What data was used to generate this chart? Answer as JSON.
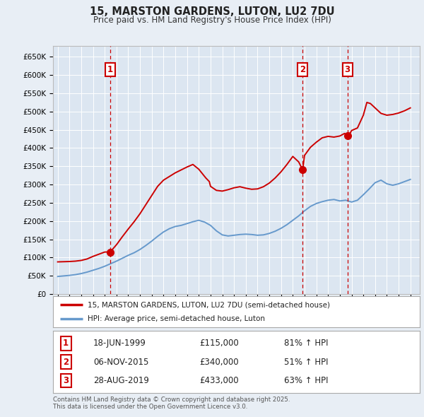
{
  "title": "15, MARSTON GARDENS, LUTON, LU2 7DU",
  "subtitle": "Price paid vs. HM Land Registry's House Price Index (HPI)",
  "background_color": "#e8eef5",
  "plot_bg_color": "#dce6f1",
  "ylim": [
    0,
    680000
  ],
  "yticks": [
    0,
    50000,
    100000,
    150000,
    200000,
    250000,
    300000,
    350000,
    400000,
    450000,
    500000,
    550000,
    600000,
    650000
  ],
  "ytick_labels": [
    "£0",
    "£50K",
    "£100K",
    "£150K",
    "£200K",
    "£250K",
    "£300K",
    "£350K",
    "£400K",
    "£450K",
    "£500K",
    "£550K",
    "£600K",
    "£650K"
  ],
  "xlim_start": 1994.6,
  "xlim_end": 2025.8,
  "xticks": [
    1995,
    1996,
    1997,
    1998,
    1999,
    2000,
    2001,
    2002,
    2003,
    2004,
    2005,
    2006,
    2007,
    2008,
    2009,
    2010,
    2011,
    2012,
    2013,
    2014,
    2015,
    2016,
    2017,
    2018,
    2019,
    2020,
    2021,
    2022,
    2023,
    2024,
    2025
  ],
  "grid_color": "#ffffff",
  "sale_line_color": "#cc0000",
  "hpi_line_color": "#6699cc",
  "vline_color": "#cc0000",
  "transactions": [
    {
      "date_year": 1999.46,
      "price": 115000,
      "label": "1"
    },
    {
      "date_year": 2015.84,
      "price": 340000,
      "label": "2"
    },
    {
      "date_year": 2019.65,
      "price": 433000,
      "label": "3"
    }
  ],
  "transaction_table": [
    {
      "num": "1",
      "date": "18-JUN-1999",
      "price": "£115,000",
      "hpi": "81% ↑ HPI"
    },
    {
      "num": "2",
      "date": "06-NOV-2015",
      "price": "£340,000",
      "hpi": "51% ↑ HPI"
    },
    {
      "num": "3",
      "date": "28-AUG-2019",
      "price": "£433,000",
      "hpi": "63% ↑ HPI"
    }
  ],
  "legend_entries": [
    "15, MARSTON GARDENS, LUTON, LU2 7DU (semi-detached house)",
    "HPI: Average price, semi-detached house, Luton"
  ],
  "footer": "Contains HM Land Registry data © Crown copyright and database right 2025.\nThis data is licensed under the Open Government Licence v3.0.",
  "hpi_x": [
    1995,
    1995.5,
    1996,
    1996.5,
    1997,
    1997.5,
    1998,
    1998.5,
    1999,
    1999.5,
    2000,
    2000.5,
    2001,
    2001.5,
    2002,
    2002.5,
    2003,
    2003.5,
    2004,
    2004.5,
    2005,
    2005.5,
    2006,
    2006.5,
    2007,
    2007.5,
    2008,
    2008.5,
    2009,
    2009.5,
    2010,
    2010.5,
    2011,
    2011.5,
    2012,
    2012.5,
    2013,
    2013.5,
    2014,
    2014.5,
    2015,
    2015.5,
    2016,
    2016.5,
    2017,
    2017.5,
    2018,
    2018.5,
    2019,
    2019.5,
    2020,
    2020.5,
    2021,
    2021.5,
    2022,
    2022.5,
    2023,
    2023.5,
    2024,
    2024.5,
    2025
  ],
  "hpi_y": [
    48000,
    49500,
    51000,
    53000,
    56000,
    60000,
    65000,
    70000,
    76000,
    83000,
    90000,
    98000,
    106000,
    113000,
    122000,
    133000,
    145000,
    158000,
    170000,
    179000,
    185000,
    188000,
    193000,
    198000,
    202000,
    197000,
    188000,
    173000,
    162000,
    159000,
    161000,
    163000,
    164000,
    163000,
    161000,
    162000,
    166000,
    172000,
    180000,
    190000,
    202000,
    214000,
    228000,
    240000,
    248000,
    253000,
    257000,
    259000,
    255000,
    257000,
    252000,
    257000,
    272000,
    288000,
    305000,
    312000,
    302000,
    298000,
    302000,
    308000,
    314000
  ],
  "sale_x": [
    1995,
    1995.5,
    1996,
    1996.5,
    1997,
    1997.5,
    1998,
    1998.5,
    1999,
    1999.46,
    2000,
    2000.5,
    2001,
    2001.5,
    2002,
    2002.5,
    2003,
    2003.5,
    2004,
    2004.5,
    2005,
    2005.5,
    2006,
    2006.5,
    2007,
    2007.3,
    2007.6,
    2007.9,
    2008,
    2008.5,
    2009,
    2009.5,
    2010,
    2010.5,
    2011,
    2011.5,
    2012,
    2012.5,
    2013,
    2013.5,
    2014,
    2014.5,
    2015,
    2015.5,
    2015.84,
    2016,
    2016.5,
    2017,
    2017.5,
    2018,
    2018.5,
    2019,
    2019.4,
    2019.65,
    2019.9,
    2020,
    2020.5,
    2021,
    2021.3,
    2021.6,
    2022,
    2022.5,
    2023,
    2023.5,
    2024,
    2024.5,
    2025
  ],
  "sale_y": [
    88000,
    88500,
    89000,
    90000,
    92000,
    96000,
    103000,
    109000,
    115000,
    115000,
    135000,
    157000,
    178000,
    198000,
    220000,
    245000,
    270000,
    295000,
    312000,
    322000,
    332000,
    340000,
    348000,
    355000,
    342000,
    330000,
    318000,
    308000,
    295000,
    284000,
    282000,
    286000,
    291000,
    294000,
    290000,
    287000,
    288000,
    294000,
    304000,
    318000,
    335000,
    355000,
    377000,
    362000,
    340000,
    380000,
    402000,
    416000,
    428000,
    432000,
    430000,
    433000,
    440000,
    433000,
    442000,
    448000,
    455000,
    490000,
    525000,
    522000,
    510000,
    495000,
    490000,
    492000,
    496000,
    502000,
    510000
  ]
}
